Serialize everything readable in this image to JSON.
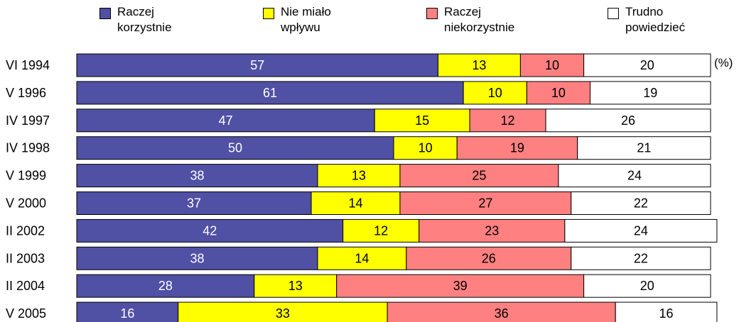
{
  "chart_data": {
    "type": "stacked_barh",
    "unit_label": "(%)",
    "categories": [
      "VI 1994",
      "V 1996",
      "IV 1997",
      "IV 1998",
      "V 1999",
      "V 2000",
      "II 2002",
      "II 2003",
      "II 2004",
      "V 2005"
    ],
    "series": [
      {
        "name": "Raczej\nkorzystnie",
        "color": "#5050a4",
        "label_color": "#ffffff",
        "values": [
          57,
          61,
          47,
          50,
          38,
          37,
          42,
          38,
          28,
          16
        ]
      },
      {
        "name": "Nie miało\nwpływu",
        "color": "#ffff00",
        "label_color": "#000000",
        "values": [
          13,
          10,
          15,
          10,
          13,
          14,
          12,
          14,
          13,
          33
        ]
      },
      {
        "name": "Raczej\nniekorzystnie",
        "color": "#ff8080",
        "label_color": "#000000",
        "values": [
          10,
          10,
          12,
          19,
          25,
          27,
          23,
          26,
          39,
          36
        ]
      },
      {
        "name": "Trudno\npowiedzieć",
        "color": "#ffffff",
        "label_color": "#000000",
        "values": [
          20,
          19,
          26,
          21,
          24,
          22,
          24,
          22,
          20,
          16
        ]
      }
    ],
    "xlim": [
      0,
      100
    ]
  }
}
